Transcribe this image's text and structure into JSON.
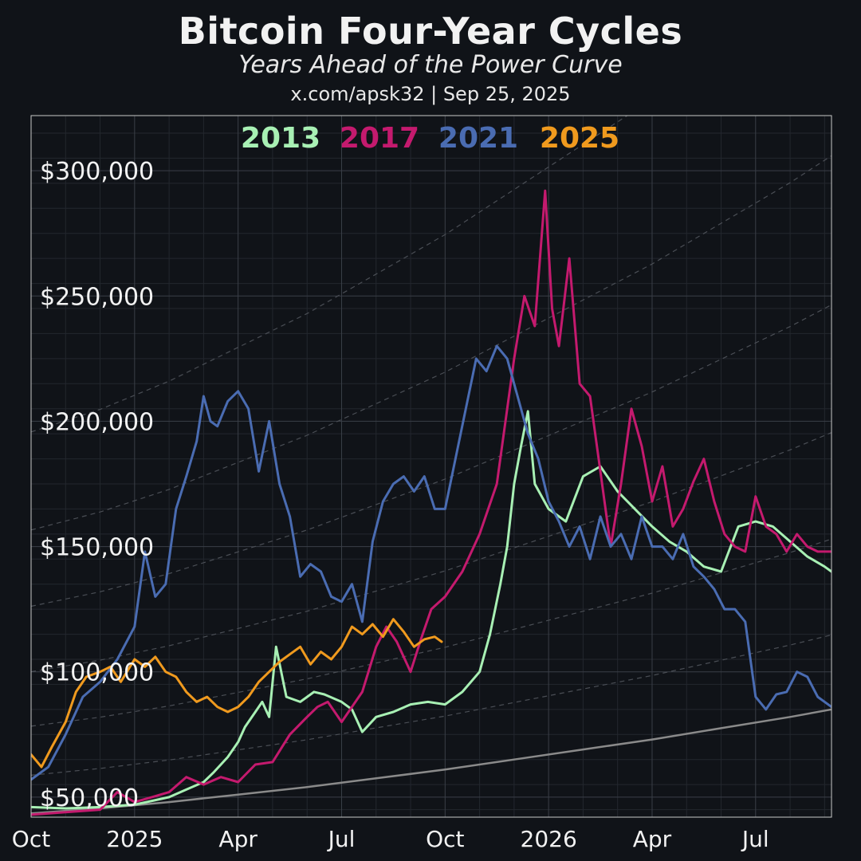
{
  "header": {
    "title": "Bitcoin Four-Year Cycles",
    "subtitle": "Years Ahead of the Power Curve",
    "credit": "x.com/apsk32 | Sep 25, 2025"
  },
  "colors": {
    "background": "#101318",
    "grid_major": "#3a3f47",
    "grid_minor": "#23272e",
    "power_curve": "#8a8a8a",
    "bands": "#4a4e55"
  },
  "chart_data": {
    "type": "line",
    "title": "Bitcoin Four-Year Cycles",
    "subtitle": "Years Ahead of the Power Curve",
    "xlabel": "",
    "ylabel": "",
    "x_ticks": [
      "Oct",
      "2025",
      "Apr",
      "Jul",
      "Oct",
      "2026",
      "Apr",
      "Jul"
    ],
    "x_tick_positions": [
      0,
      3,
      6,
      9,
      12,
      15,
      18,
      21
    ],
    "xlim": [
      0,
      23.2
    ],
    "y_ticks": [
      "$50,000",
      "$100,000",
      "$150,000",
      "$200,000",
      "$250,000",
      "$300,000"
    ],
    "y_tick_values": [
      50000,
      100000,
      150000,
      200000,
      250000,
      300000
    ],
    "ylim": [
      42000,
      322000
    ],
    "grid": true,
    "legend_position": "top-center",
    "x_unit": "months since Oct 2024",
    "series": [
      {
        "name": "2013",
        "color": "#a8f0b4",
        "x": [
          0,
          1,
          2,
          3,
          3.5,
          4,
          4.5,
          5,
          5.3,
          5.7,
          6,
          6.2,
          6.5,
          6.7,
          6.9,
          7.1,
          7.4,
          7.8,
          8.2,
          8.5,
          9,
          9.3,
          9.6,
          10,
          10.5,
          11,
          11.5,
          12,
          12.5,
          13,
          13.3,
          13.6,
          13.8,
          14,
          14.2,
          14.4,
          14.6,
          15,
          15.5,
          16,
          16.5,
          17,
          17.5,
          18,
          18.5,
          19,
          19.5,
          20,
          20.5,
          21,
          21.5,
          22,
          22.5,
          23,
          23.2
        ],
        "y": [
          46000,
          45500,
          46000,
          47000,
          48500,
          50000,
          53000,
          56000,
          60000,
          66000,
          72000,
          78000,
          84000,
          88000,
          82000,
          110000,
          90000,
          88000,
          92000,
          91000,
          88000,
          85000,
          76000,
          82000,
          84000,
          87000,
          88000,
          87000,
          92000,
          100000,
          115000,
          135000,
          150000,
          175000,
          190000,
          204000,
          175000,
          165000,
          160000,
          178000,
          182000,
          172000,
          165000,
          158000,
          152000,
          148000,
          142000,
          140000,
          158000,
          160000,
          158000,
          152000,
          146000,
          142000,
          140000
        ]
      },
      {
        "name": "2017",
        "color": "#c41a6e",
        "x": [
          0,
          1,
          2,
          2.5,
          3,
          3.5,
          4,
          4.5,
          5,
          5.5,
          6,
          6.5,
          7,
          7.5,
          8,
          8.3,
          8.6,
          9,
          9.3,
          9.6,
          10,
          10.3,
          10.6,
          11,
          11.3,
          11.6,
          12,
          12.5,
          13,
          13.5,
          14,
          14.3,
          14.6,
          14.9,
          15.1,
          15.3,
          15.6,
          15.9,
          16.2,
          16.5,
          16.8,
          17.1,
          17.4,
          17.7,
          18,
          18.3,
          18.6,
          18.9,
          19.2,
          19.5,
          19.8,
          20.1,
          20.4,
          20.7,
          21,
          21.3,
          21.6,
          21.9,
          22.2,
          22.5,
          22.8,
          23.2
        ],
        "y": [
          43000,
          44000,
          45000,
          52000,
          48000,
          50000,
          52000,
          58000,
          55000,
          58000,
          56000,
          63000,
          64000,
          75000,
          82000,
          86000,
          88000,
          80000,
          86000,
          92000,
          110000,
          118000,
          112000,
          100000,
          113000,
          125000,
          130000,
          140000,
          155000,
          175000,
          225000,
          250000,
          238000,
          292000,
          245000,
          230000,
          265000,
          215000,
          210000,
          180000,
          150000,
          175000,
          205000,
          190000,
          168000,
          182000,
          158000,
          165000,
          176000,
          185000,
          168000,
          155000,
          150000,
          148000,
          170000,
          158000,
          155000,
          148000,
          155000,
          150000,
          148000,
          148000
        ]
      },
      {
        "name": "2021",
        "color": "#4a6cb2",
        "x": [
          0,
          0.5,
          1,
          1.5,
          2,
          2.5,
          3,
          3.3,
          3.6,
          3.9,
          4.2,
          4.5,
          4.8,
          5,
          5.2,
          5.4,
          5.7,
          6,
          6.3,
          6.6,
          6.9,
          7.2,
          7.5,
          7.8,
          8.1,
          8.4,
          8.7,
          9,
          9.3,
          9.6,
          9.9,
          10.2,
          10.5,
          10.8,
          11.1,
          11.4,
          11.7,
          12,
          12.3,
          12.6,
          12.9,
          13.2,
          13.5,
          13.8,
          14.1,
          14.4,
          14.7,
          15,
          15.3,
          15.6,
          15.9,
          16.2,
          16.5,
          16.8,
          17.1,
          17.4,
          17.7,
          18,
          18.3,
          18.6,
          18.9,
          19.2,
          19.5,
          19.8,
          20.1,
          20.4,
          20.7,
          21,
          21.3,
          21.6,
          21.9,
          22.2,
          22.5,
          22.8,
          23.2
        ],
        "y": [
          57000,
          62000,
          75000,
          90000,
          96000,
          105000,
          118000,
          148000,
          130000,
          135000,
          165000,
          178000,
          192000,
          210000,
          200000,
          198000,
          208000,
          212000,
          205000,
          180000,
          200000,
          175000,
          162000,
          138000,
          143000,
          140000,
          130000,
          128000,
          135000,
          120000,
          152000,
          168000,
          175000,
          178000,
          172000,
          178000,
          165000,
          165000,
          185000,
          205000,
          225000,
          220000,
          230000,
          225000,
          210000,
          195000,
          185000,
          168000,
          160000,
          150000,
          158000,
          145000,
          162000,
          150000,
          155000,
          145000,
          162000,
          150000,
          150000,
          145000,
          155000,
          142000,
          138000,
          133000,
          125000,
          125000,
          120000,
          90000,
          85000,
          91000,
          92000,
          100000,
          98000,
          90000,
          86000
        ]
      },
      {
        "name": "2025",
        "color": "#f09a1e",
        "x": [
          0,
          0.3,
          0.6,
          1,
          1.3,
          1.6,
          2,
          2.3,
          2.6,
          3,
          3.3,
          3.6,
          3.9,
          4.2,
          4.5,
          4.8,
          5.1,
          5.4,
          5.7,
          6,
          6.3,
          6.6,
          6.9,
          7.2,
          7.5,
          7.8,
          8.1,
          8.4,
          8.7,
          9,
          9.3,
          9.6,
          9.9,
          10.2,
          10.5,
          10.8,
          11.1,
          11.4,
          11.7,
          11.9
        ],
        "y": [
          67000,
          62000,
          70000,
          80000,
          92000,
          98000,
          100000,
          102000,
          96000,
          105000,
          102000,
          106000,
          100000,
          98000,
          92000,
          88000,
          90000,
          86000,
          84000,
          86000,
          90000,
          96000,
          100000,
          104000,
          107000,
          110000,
          103000,
          108000,
          105000,
          110000,
          118000,
          115000,
          119000,
          114000,
          121000,
          116000,
          110000,
          113000,
          114000,
          112000
        ]
      }
    ],
    "power_curve": {
      "x": [
        0,
        2,
        4,
        6,
        8,
        10,
        12,
        14,
        16,
        18,
        20,
        22,
        23.2
      ],
      "y": [
        43500,
        45500,
        48000,
        51000,
        54000,
        57500,
        61000,
        65000,
        69000,
        73000,
        77500,
        82000,
        85000
      ]
    },
    "band_multipliers": [
      1.35,
      1.8,
      2.3,
      2.9,
      3.6,
      4.5
    ]
  }
}
